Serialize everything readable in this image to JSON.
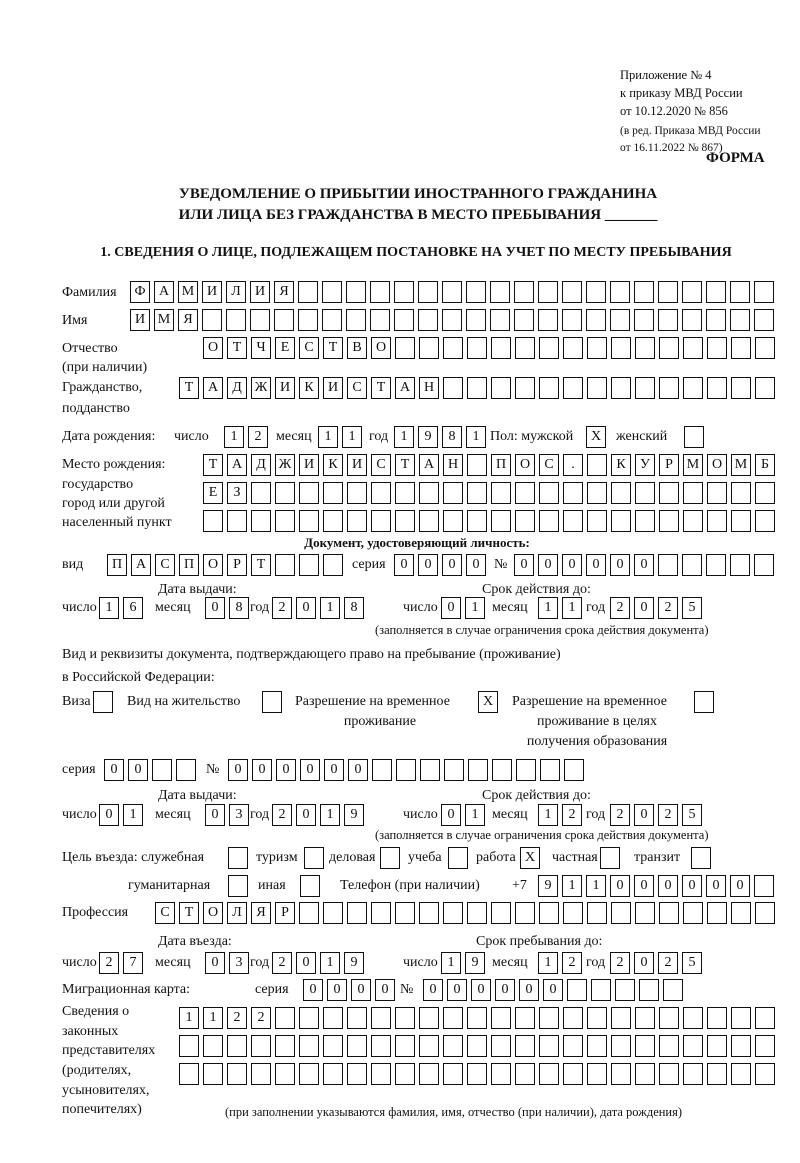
{
  "header": {
    "appendix": "Приложение № 4",
    "order": "к приказу МВД России",
    "order_date": "от 10.12.2020 № 856",
    "revision1": "(в ред. Приказа МВД России",
    "revision2": "от 16.11.2022 № 867)",
    "form": "ФОРМА",
    "title1": "УВЕДОМЛЕНИЕ О ПРИБЫТИИ ИНОСТРАННОГО ГРАЖДАНИНА",
    "title2": "ИЛИ ЛИЦА БЕЗ ГРАЖДАНСТВА В МЕСТО ПРЕБЫВАНИЯ _______",
    "section1": "1. СВЕДЕНИЯ О ЛИЦЕ, ПОДЛЕЖАЩЕМ ПОСТАНОВКЕ НА УЧЕТ ПО МЕСТУ ПРЕБЫВАНИЯ"
  },
  "labels": {
    "surname": "Фамилия",
    "name": "Имя",
    "patronymic": "Отчество",
    "patronymic2": "(при наличии)",
    "citizenship": "Гражданство,",
    "citizenship2": "подданство",
    "birth_date": "Дата рождения:",
    "day": "число",
    "month": "месяц",
    "year": "год",
    "sex": "Пол: мужской",
    "female": "женский",
    "birth_place": "Место рождения:",
    "bp2": "государство",
    "bp3": "город или другой",
    "bp4": "населенный пункт",
    "id_doc": "Документ, удостоверяющий личность:",
    "kind": "вид",
    "series": "серия",
    "number": "№",
    "issue_date": "Дата выдачи:",
    "valid_until": "Срок действия до:",
    "validity_note": "(заполняется в случае ограничения срока действия документа)",
    "stay_doc1": "Вид и реквизиты документа, подтверждающего право на пребывание (проживание)",
    "stay_doc2": "в Российской Федерации:",
    "visa": "Виза",
    "residence": "Вид на жительство",
    "trp1": "Разрешение на временное",
    "trp2": "проживание",
    "trpe1": "Разрешение на временное",
    "trpe2": "проживание в целях",
    "trpe3": "получения образования",
    "purpose": "Цель въезда: служебная",
    "tourism": "туризм",
    "business": "деловая",
    "study": "учеба",
    "work": "работа",
    "private": "частная",
    "transit": "транзит",
    "humanitarian": "гуманитарная",
    "other": "иная",
    "phone": "Телефон (при наличии)",
    "phone_prefix": "+7",
    "profession": "Профессия",
    "entry_date": "Дата въезда:",
    "stay_until": "Срок пребывания до:",
    "migration_card": "Миграционная карта:",
    "reps1": "Сведения о",
    "reps2": "законных",
    "reps3": "представителях",
    "reps4": "(родителях,",
    "reps5": "усыновителях,",
    "reps6": "попечителях)",
    "reps_note": "(при заполнении указываются фамилия, имя, отчество (при наличии), дата рождения)"
  },
  "person": {
    "surname": "ФАМИЛИЯ",
    "name": "ИМЯ",
    "patronymic": "ОТЧЕСТВО",
    "citizenship": "ТАДЖИКИСТАН",
    "birth_day": "12",
    "birth_month": "11",
    "birth_year": "1981",
    "male": "X",
    "female": "",
    "birth_place1": "ТАДЖИКИСТАН ПОС. КУРМОМБ",
    "birth_place2": "ЕЗ",
    "birth_place3": ""
  },
  "id_document": {
    "kind": "ПАСПОРТ",
    "series": "0000",
    "number": "000000",
    "issue_day": "16",
    "issue_month": "08",
    "issue_year": "2018",
    "valid_day": "01",
    "valid_month": "11",
    "valid_year": "2025"
  },
  "stay_document": {
    "visa": "",
    "residence": "",
    "trp": "X",
    "trp_education": "",
    "series": "00",
    "number": "000000",
    "issue_day": "01",
    "issue_month": "03",
    "issue_year": "2019",
    "valid_day": "01",
    "valid_month": "12",
    "valid_year": "2025"
  },
  "purpose": {
    "service": "",
    "tourism": "",
    "business": "",
    "study": "",
    "work": "X",
    "private": "",
    "transit": "",
    "humanitarian": "",
    "other": ""
  },
  "phone": "911000000",
  "profession": "СТОЛЯР",
  "entry": {
    "day": "27",
    "month": "03",
    "year": "2019",
    "stay_day": "19",
    "stay_month": "12",
    "stay_year": "2025"
  },
  "migration_card": {
    "series": "0000",
    "number": "000000"
  },
  "representatives": {
    "line1": "1122",
    "line2": "",
    "line3": ""
  }
}
